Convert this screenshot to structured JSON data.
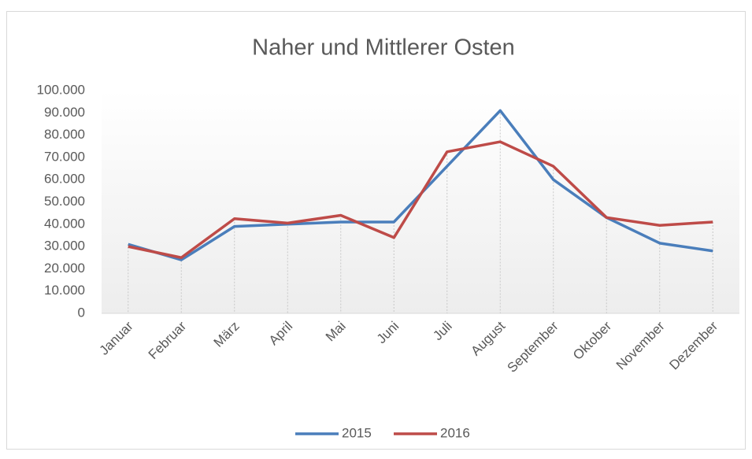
{
  "chart_data": {
    "type": "line",
    "title": "Naher und Mittlerer Osten",
    "categories": [
      "Januar",
      "Februar",
      "März",
      "April",
      "Mai",
      "Juni",
      "Juli",
      "August",
      "September",
      "Oktober",
      "November",
      "Dezember"
    ],
    "series": [
      {
        "name": "2015",
        "color": "#4a7ebb",
        "values": [
          31000,
          24000,
          39000,
          40000,
          41000,
          41000,
          66000,
          91000,
          60000,
          43000,
          31500,
          28000
        ]
      },
      {
        "name": "2016",
        "color": "#be4b48",
        "values": [
          30000,
          25000,
          42500,
          40500,
          44000,
          34000,
          72500,
          77000,
          66000,
          43000,
          39500,
          41000
        ]
      }
    ],
    "ylim": [
      0,
      100000
    ],
    "yticks": [
      0,
      {
        "value": 10000,
        "label": "10.000"
      },
      {
        "value": 20000,
        "label": "20.000"
      },
      {
        "value": 30000,
        "label": "30.000"
      },
      {
        "value": 40000,
        "label": "40.000"
      },
      {
        "value": 50000,
        "label": "50.000"
      },
      {
        "value": 60000,
        "label": "60.000"
      },
      {
        "value": 70000,
        "label": "70.000"
      },
      {
        "value": 80000,
        "label": "80.000"
      },
      {
        "value": 90000,
        "label": "90.000"
      },
      {
        "value": 100000,
        "label": "100.000"
      }
    ],
    "legend": "bottom"
  }
}
